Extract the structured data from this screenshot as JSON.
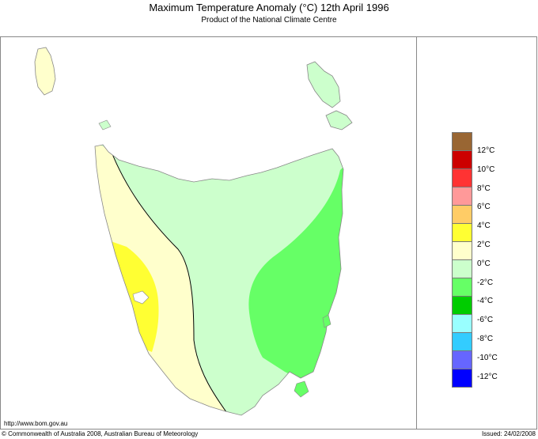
{
  "header": {
    "title": "Maximum Temperature Anomaly (°C)  12th April 1996",
    "subtitle": "Product of the National Climate Centre"
  },
  "footer": {
    "url": "http://www.bom.gov.au",
    "copyright": "© Commonwealth of Australia 2008, Australian Bureau of Meteorology",
    "issued": "Issued: 24/02/2008"
  },
  "legend": {
    "colors": [
      "#996633",
      "#cc0000",
      "#ff3333",
      "#ff9999",
      "#ffcc66",
      "#ffff33",
      "#ffffcc",
      "#ccffcc",
      "#66ff66",
      "#00cc00",
      "#99ffff",
      "#33ccff",
      "#6666ff",
      "#0000ff"
    ],
    "labels": [
      "12°C",
      "10°C",
      "8°C",
      "6°C",
      "4°C",
      "2°C",
      "0°C",
      "-2°C",
      "-4°C",
      "-6°C",
      "-8°C",
      "-10°C",
      "-12°C"
    ]
  },
  "map": {
    "region": "Tasmania",
    "zones": [
      {
        "range": "-2 to 0°C",
        "color": "#ccffcc"
      },
      {
        "range": "0 to 2°C",
        "color": "#ffffcc"
      },
      {
        "range": "2 to 4°C",
        "color": "#ffff33"
      },
      {
        "range": "-4 to -2°C",
        "color": "#66ff66"
      }
    ]
  }
}
